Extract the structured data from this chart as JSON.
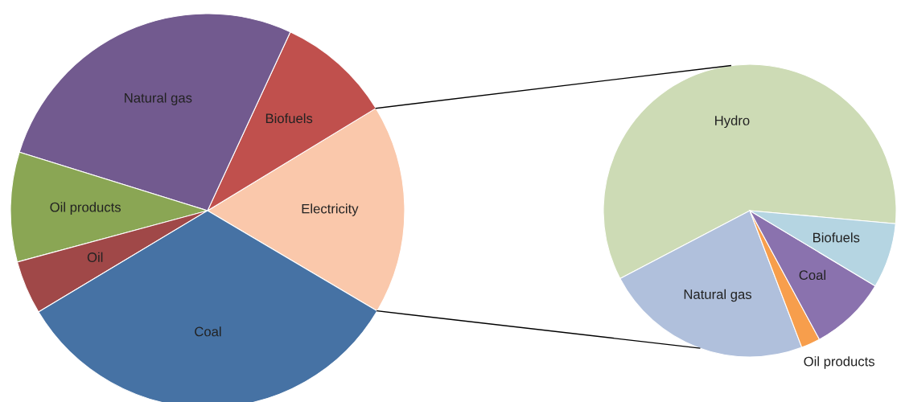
{
  "chart_data": [
    {
      "type": "pie",
      "categories": [
        "Electricity",
        "Biofuels",
        "Natural gas",
        "Oil products",
        "Oil",
        "Coal"
      ],
      "values": [
        17.2,
        9.4,
        27.1,
        9.0,
        4.4,
        32.9
      ],
      "colors": [
        "#fac8ab",
        "#c0504d",
        "#725a8f",
        "#8aa654",
        "#a04848",
        "#4672a4"
      ]
    },
    {
      "type": "pie",
      "categories": [
        "Hydro",
        "Natural gas",
        "Oil products",
        "Coal",
        "Biofuels"
      ],
      "values": [
        59.1,
        23.1,
        2.1,
        8.5,
        7.2
      ],
      "colors": [
        "#cddbb5",
        "#b0c0dc",
        "#f79e4c",
        "#8a72ae",
        "#b5d5e2"
      ]
    }
  ]
}
